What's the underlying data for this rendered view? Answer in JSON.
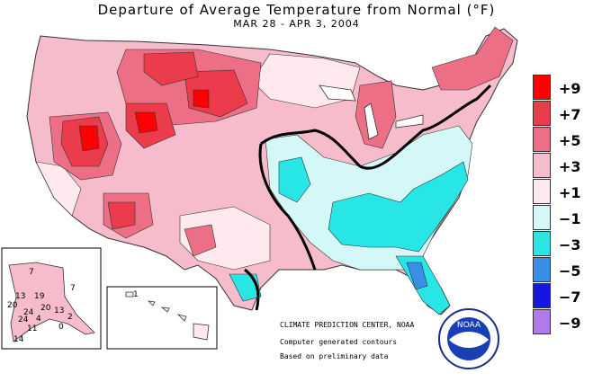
{
  "title": "Departure of Average Temperature from Normal (°F)",
  "subtitle": "MAR 28 - APR  3, 2004",
  "legend": [
    {
      "label": "+9",
      "color": "#ff0000"
    },
    {
      "label": "+7",
      "color": "#ec3b4b"
    },
    {
      "label": "+5",
      "color": "#ec6f85"
    },
    {
      "label": "+3",
      "color": "#f7bccb"
    },
    {
      "label": "+1",
      "color": "#fde9ee"
    },
    {
      "label": "−1",
      "color": "#d4f8f8"
    },
    {
      "label": "−3",
      "color": "#29e6e6"
    },
    {
      "label": "−5",
      "color": "#3b8ee6"
    },
    {
      "label": "−7",
      "color": "#1616e3"
    },
    {
      "label": "−9",
      "color": "#b07be8"
    }
  ],
  "credits": {
    "center": "CLIMATE PREDICTION CENTER, NOAA",
    "line2": "Computer generated contours",
    "line3": "Based on preliminary data"
  },
  "logo_text": "NOAA",
  "alaska_values": [
    "7",
    "13",
    "19",
    "20",
    "24",
    "24",
    "13",
    "20",
    "4",
    "2",
    "14",
    "11",
    "0",
    "7"
  ],
  "hawaii_value": "1"
}
